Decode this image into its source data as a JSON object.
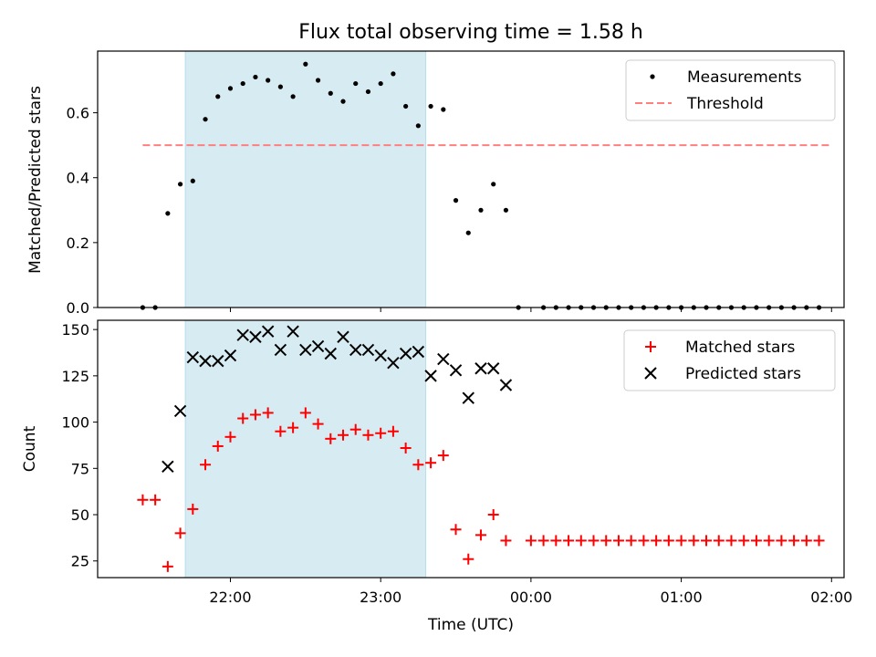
{
  "chart_data": [
    {
      "type": "scatter",
      "title": "Flux total observing time = 1.58 h",
      "xlabel": "",
      "ylabel": "Matched/Predicted stars",
      "xlim": [
        "21:07",
        "02:05"
      ],
      "ylim": [
        0,
        0.79
      ],
      "yticks": [
        0.0,
        0.2,
        0.4,
        0.6
      ],
      "ytick_labels": [
        "0.0",
        "0.2",
        "0.4",
        "0.6"
      ],
      "xticks": [
        "22:00",
        "23:00",
        "00:00",
        "01:00",
        "02:00"
      ],
      "shaded_span": [
        "21:42",
        "23:18"
      ],
      "legend_position": "upper right",
      "series": [
        {
          "name": "Measurements",
          "marker": "dot",
          "color": "#000000",
          "x": [
            "21:25",
            "21:30",
            "21:35",
            "21:40",
            "21:45",
            "21:50",
            "21:55",
            "22:00",
            "22:05",
            "22:10",
            "22:15",
            "22:20",
            "22:25",
            "22:30",
            "22:35",
            "22:40",
            "22:45",
            "22:50",
            "22:55",
            "23:00",
            "23:05",
            "23:10",
            "23:15",
            "23:20",
            "23:25",
            "23:30",
            "23:35",
            "23:40",
            "23:45",
            "23:50",
            "23:55",
            "00:05",
            "00:10",
            "00:15",
            "00:20",
            "00:25",
            "00:30",
            "00:35",
            "00:40",
            "00:45",
            "00:50",
            "00:55",
            "01:00",
            "01:05",
            "01:10",
            "01:15",
            "01:20",
            "01:25",
            "01:30",
            "01:35",
            "01:40",
            "01:45",
            "01:50",
            "01:55"
          ],
          "y": [
            0.0,
            0.0,
            0.29,
            0.38,
            0.39,
            0.58,
            0.65,
            0.675,
            0.69,
            0.71,
            0.7,
            0.68,
            0.65,
            0.75,
            0.7,
            0.66,
            0.635,
            0.69,
            0.665,
            0.69,
            0.72,
            0.62,
            0.56,
            0.62,
            0.61,
            0.33,
            0.23,
            0.3,
            0.38,
            0.3,
            0.0,
            0.0,
            0.0,
            0.0,
            0.0,
            0.0,
            0.0,
            0.0,
            0.0,
            0.0,
            0.0,
            0.0,
            0.0,
            0.0,
            0.0,
            0.0,
            0.0,
            0.0,
            0.0,
            0.0,
            0.0,
            0.0,
            0.0,
            0.0
          ]
        },
        {
          "name": "Threshold",
          "marker": "dashed-line",
          "color": "#ff7f7f",
          "x": [
            "21:25",
            "02:00"
          ],
          "y": [
            0.5,
            0.5
          ]
        }
      ]
    },
    {
      "type": "scatter",
      "title": "",
      "xlabel": "Time (UTC)",
      "ylabel": "Count",
      "xlim": [
        "21:07",
        "02:05"
      ],
      "ylim": [
        16,
        155
      ],
      "yticks": [
        25,
        50,
        75,
        100,
        125,
        150
      ],
      "xticks": [
        "22:00",
        "23:00",
        "00:00",
        "01:00",
        "02:00"
      ],
      "shaded_span": [
        "21:42",
        "23:18"
      ],
      "legend_position": "upper right",
      "series": [
        {
          "name": "Matched stars",
          "marker": "plus",
          "color": "#ff0000",
          "x": [
            "21:25",
            "21:30",
            "21:35",
            "21:40",
            "21:45",
            "21:50",
            "21:55",
            "22:00",
            "22:05",
            "22:10",
            "22:15",
            "22:20",
            "22:25",
            "22:30",
            "22:35",
            "22:40",
            "22:45",
            "22:50",
            "22:55",
            "23:00",
            "23:05",
            "23:10",
            "23:15",
            "23:20",
            "23:25",
            "23:30",
            "23:35",
            "23:40",
            "23:45",
            "23:50",
            "00:00",
            "00:05",
            "00:10",
            "00:15",
            "00:20",
            "00:25",
            "00:30",
            "00:35",
            "00:40",
            "00:45",
            "00:50",
            "00:55",
            "01:00",
            "01:05",
            "01:10",
            "01:15",
            "01:20",
            "01:25",
            "01:30",
            "01:35",
            "01:40",
            "01:45",
            "01:50",
            "01:55"
          ],
          "y": [
            58,
            58,
            22,
            40,
            53,
            77,
            87,
            92,
            102,
            104,
            105,
            95,
            97,
            105,
            99,
            91,
            93,
            96,
            93,
            94,
            95,
            86,
            77,
            78,
            82,
            42,
            26,
            39,
            50,
            36,
            36,
            36,
            36,
            36,
            36,
            36,
            36,
            36,
            36,
            36,
            36,
            36,
            36,
            36,
            36,
            36,
            36,
            36,
            36,
            36,
            36,
            36,
            36,
            36
          ]
        },
        {
          "name": "Predicted stars",
          "marker": "x",
          "color": "#000000",
          "x": [
            "21:35",
            "21:40",
            "21:45",
            "21:50",
            "21:55",
            "22:00",
            "22:05",
            "22:10",
            "22:15",
            "22:20",
            "22:25",
            "22:30",
            "22:35",
            "22:40",
            "22:45",
            "22:50",
            "22:55",
            "23:00",
            "23:05",
            "23:10",
            "23:15",
            "23:20",
            "23:25",
            "23:30",
            "23:35",
            "23:40",
            "23:45",
            "23:50"
          ],
          "y": [
            76,
            106,
            135,
            133,
            133,
            136,
            147,
            146,
            149,
            139,
            149,
            139,
            141,
            137,
            146,
            139,
            139,
            136,
            132,
            137,
            138,
            125,
            134,
            128,
            113,
            129,
            129,
            120
          ]
        }
      ]
    }
  ]
}
